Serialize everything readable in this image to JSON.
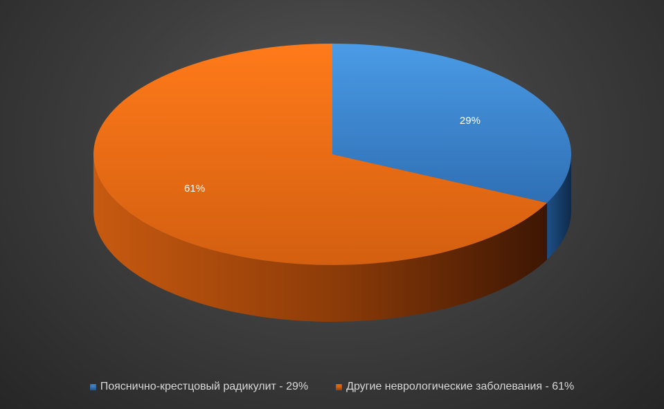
{
  "chart_data": {
    "type": "pie",
    "three_d": true,
    "legend_position": "bottom",
    "slices": [
      {
        "name": "Пояснично-крестцовый радикулит - 29%",
        "value": 29,
        "label": "29%",
        "color": "#3b82c9",
        "dark": "#1d4f86"
      },
      {
        "name": "Другие неврологические заболевания - 61%",
        "value": 61,
        "label": "61%",
        "color": "#e8650f",
        "dark": "#7a2e05"
      }
    ]
  }
}
